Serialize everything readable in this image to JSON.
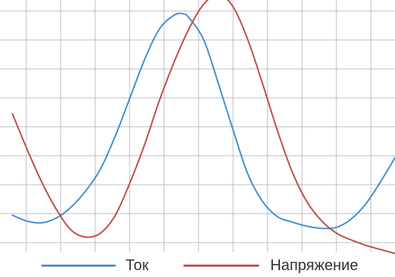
{
  "chart_data": {
    "type": "line",
    "title": "",
    "xlabel": "",
    "ylabel": "",
    "grid": true,
    "legend_position": "bottom-center",
    "xlim": [
      0,
      13
    ],
    "ylim": [
      0,
      8.6
    ],
    "series": [
      {
        "name": "Ток",
        "color": "#4a8fcf",
        "x": [
          0,
          0.5,
          1,
          1.5,
          2,
          2.5,
          3,
          3.5,
          4,
          4.5,
          5,
          5.5,
          5.8,
          6,
          6.5,
          7,
          7.5,
          8,
          8.5,
          9,
          9.5,
          10,
          10.5,
          11,
          11.5,
          12,
          12.5,
          13
        ],
        "values": [
          1.0,
          0.78,
          0.72,
          0.9,
          1.3,
          1.9,
          2.7,
          3.9,
          5.3,
          6.7,
          7.8,
          8.3,
          8.35,
          8.2,
          7.4,
          5.8,
          4.1,
          2.5,
          1.5,
          0.95,
          0.75,
          0.6,
          0.52,
          0.55,
          0.85,
          1.4,
          2.2,
          3.1
        ]
      },
      {
        "name": "Напряжение",
        "color": "#c0504d",
        "x": [
          0,
          0.5,
          1,
          1.5,
          2,
          2.5,
          3,
          3.5,
          4,
          4.5,
          5,
          5.5,
          6,
          6.5,
          7,
          7.5,
          8,
          8.5,
          9,
          9.5,
          10,
          10.5,
          11,
          11.5,
          12,
          12.5,
          13
        ],
        "values": [
          4.7,
          3.4,
          2.2,
          1.2,
          0.45,
          0.2,
          0.35,
          1.0,
          2.2,
          3.6,
          5.2,
          6.6,
          7.8,
          8.7,
          9.05,
          8.6,
          7.4,
          5.8,
          4.1,
          2.6,
          1.5,
          0.8,
          0.35,
          0.1,
          -0.1,
          -0.25,
          -0.4
        ]
      }
    ]
  }
}
